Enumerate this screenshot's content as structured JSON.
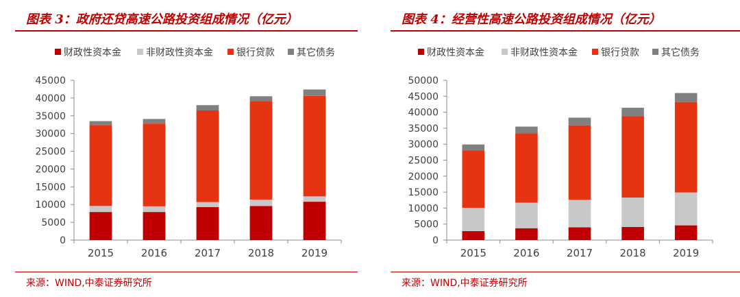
{
  "charts": [
    {
      "title": "图表 3：政府还贷高速公路投资组成情况（亿元）",
      "source": "来源：WIND,中泰证券研究所"
    },
    {
      "title": "图表 4：经营性高速公路投资组成情况（亿元）",
      "source": "来源：WIND,中泰证券研究所"
    }
  ],
  "chart_data": [
    {
      "type": "bar",
      "stacked": true,
      "title": "图表 3：政府还贷高速公路投资组成情况（亿元）",
      "categories": [
        "2015",
        "2016",
        "2017",
        "2018",
        "2019"
      ],
      "series": [
        {
          "name": "财政性资本金",
          "color": "#c00000",
          "values": [
            7900,
            7900,
            9300,
            9600,
            10800
          ]
        },
        {
          "name": "非财政性资本金",
          "color": "#c8c8c8",
          "values": [
            1700,
            1600,
            1400,
            1800,
            1500
          ]
        },
        {
          "name": "银行贷款",
          "color": "#e63312",
          "values": [
            22800,
            23300,
            25800,
            27700,
            28300
          ]
        },
        {
          "name": "其它债务",
          "color": "#808080",
          "values": [
            1100,
            1300,
            1500,
            1400,
            1800
          ]
        }
      ],
      "ylim": [
        0,
        45000
      ],
      "yticks": [
        0,
        5000,
        10000,
        15000,
        20000,
        25000,
        30000,
        35000,
        40000,
        45000
      ],
      "legend": "top",
      "grid": false
    },
    {
      "type": "bar",
      "stacked": true,
      "title": "图表 4：经营性高速公路投资组成情况（亿元）",
      "categories": [
        "2015",
        "2016",
        "2017",
        "2018",
        "2019"
      ],
      "series": [
        {
          "name": "财政性资本金",
          "color": "#c00000",
          "values": [
            2800,
            3700,
            4000,
            4100,
            4600
          ]
        },
        {
          "name": "非财政性资本金",
          "color": "#c8c8c8",
          "values": [
            7300,
            8000,
            8600,
            9200,
            10300
          ]
        },
        {
          "name": "银行贷款",
          "color": "#e63312",
          "values": [
            17900,
            21700,
            23300,
            25500,
            28300
          ]
        },
        {
          "name": "其它债务",
          "color": "#808080",
          "values": [
            1900,
            2100,
            2400,
            2600,
            2800
          ]
        }
      ],
      "ylim": [
        0,
        50000
      ],
      "yticks": [
        0,
        5000,
        10000,
        15000,
        20000,
        25000,
        30000,
        35000,
        40000,
        45000,
        50000
      ],
      "legend": "top",
      "grid": false
    }
  ]
}
